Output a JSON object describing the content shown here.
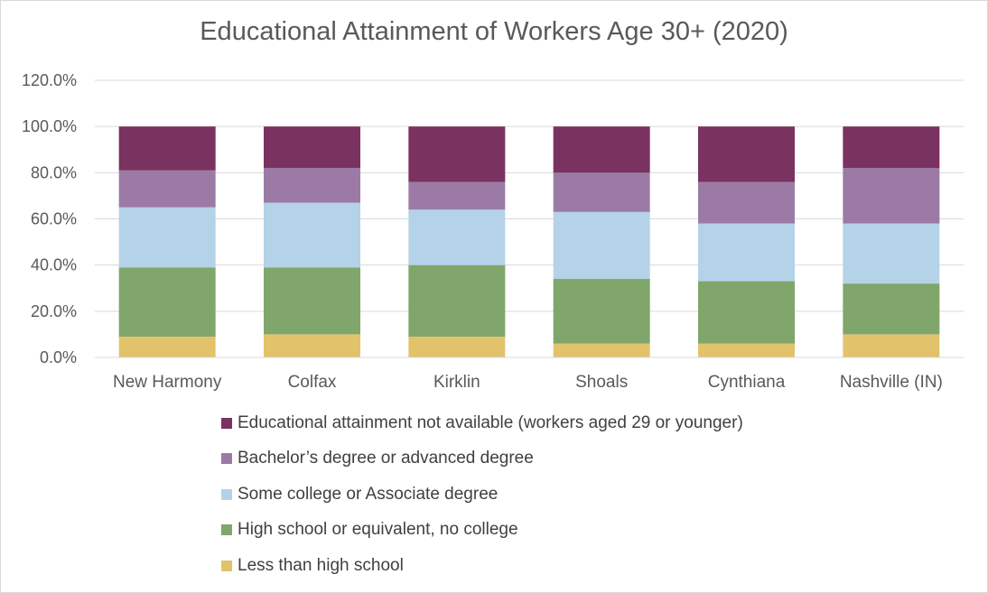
{
  "chart_data": {
    "type": "bar",
    "stacked": true,
    "title": "Educational Attainment of Workers Age 30+ (2020)",
    "xlabel": "",
    "ylabel": "",
    "ylim": [
      0,
      1.2
    ],
    "yticks": [
      "0.0%",
      "20.0%",
      "40.0%",
      "60.0%",
      "80.0%",
      "100.0%",
      "120.0%"
    ],
    "grid": true,
    "legend_position": "bottom",
    "categories": [
      "New Harmony",
      "Colfax",
      "Kirklin",
      "Shoals",
      "Cynthiana",
      "Nashville (IN)"
    ],
    "series": [
      {
        "name": "Less than high school",
        "color": "#e2c36b",
        "values": [
          0.09,
          0.1,
          0.09,
          0.06,
          0.06,
          0.1
        ]
      },
      {
        "name": "High school or equivalent, no college",
        "color": "#80a66b",
        "values": [
          0.3,
          0.29,
          0.31,
          0.28,
          0.27,
          0.22
        ]
      },
      {
        "name": "Some college or Associate degree",
        "color": "#b4d2e8",
        "values": [
          0.26,
          0.28,
          0.24,
          0.29,
          0.25,
          0.26
        ]
      },
      {
        "name": "Bachelor’s degree or advanced degree",
        "color": "#9b7ba6",
        "values": [
          0.16,
          0.15,
          0.12,
          0.17,
          0.18,
          0.24
        ]
      },
      {
        "name": "Educational attainment not available (workers aged 29 or younger)",
        "color": "#7a3260",
        "values": [
          0.19,
          0.18,
          0.24,
          0.2,
          0.24,
          0.18
        ]
      }
    ],
    "legend_order": [
      4,
      3,
      2,
      1,
      0
    ],
    "gridline_color": "#d9d9d9",
    "axis_text_color": "#595959"
  }
}
